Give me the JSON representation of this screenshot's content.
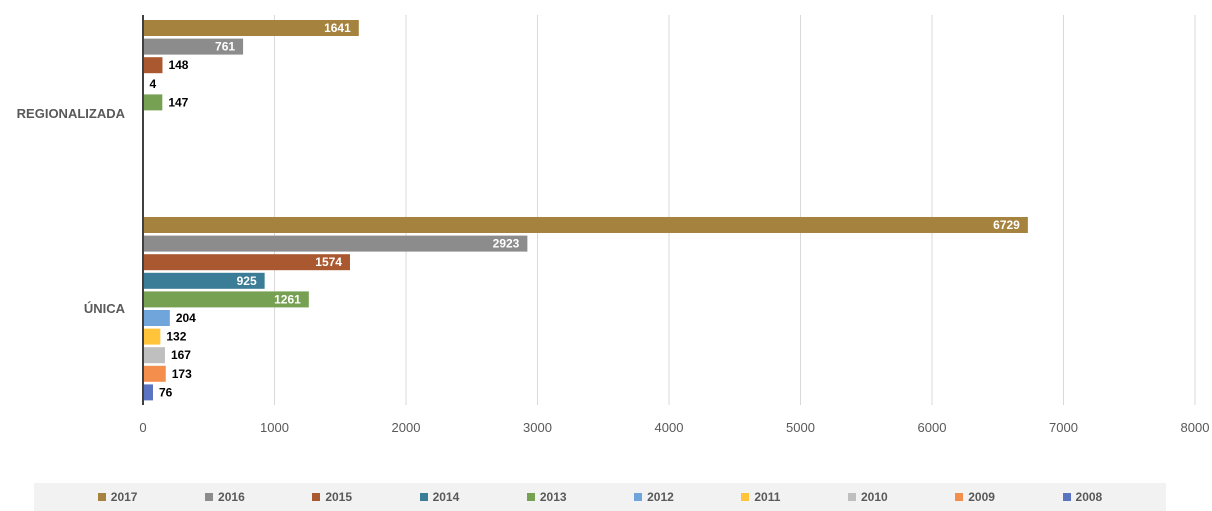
{
  "chart_data": {
    "type": "bar",
    "orientation": "horizontal",
    "categories": [
      "REGIONALIZADA",
      "ÚNICA"
    ],
    "xlim": [
      0,
      8000
    ],
    "x_ticks": [
      "0",
      "1000",
      "2000",
      "3000",
      "4000",
      "5000",
      "6000",
      "7000",
      "8000"
    ],
    "grid": true,
    "legend_position": "bottom",
    "series": [
      {
        "name": "2017",
        "color": "#A5823D",
        "values": [
          1641,
          6729
        ]
      },
      {
        "name": "2016",
        "color": "#8C8C8C",
        "values": [
          761,
          2923
        ]
      },
      {
        "name": "2015",
        "color": "#A9582F",
        "values": [
          148,
          1574
        ]
      },
      {
        "name": "2014",
        "color": "#3B7D96",
        "values": [
          4,
          925
        ]
      },
      {
        "name": "2013",
        "color": "#77A152",
        "values": [
          147,
          1261
        ]
      },
      {
        "name": "2012",
        "color": "#6FA5DB",
        "values": [
          null,
          204
        ]
      },
      {
        "name": "2011",
        "color": "#FFC43A",
        "values": [
          null,
          132
        ]
      },
      {
        "name": "2010",
        "color": "#BFBFBF",
        "values": [
          null,
          167
        ]
      },
      {
        "name": "2009",
        "color": "#F38E4C",
        "values": [
          null,
          173
        ]
      },
      {
        "name": "2008",
        "color": "#5B74C2",
        "values": [
          null,
          76
        ]
      }
    ]
  }
}
